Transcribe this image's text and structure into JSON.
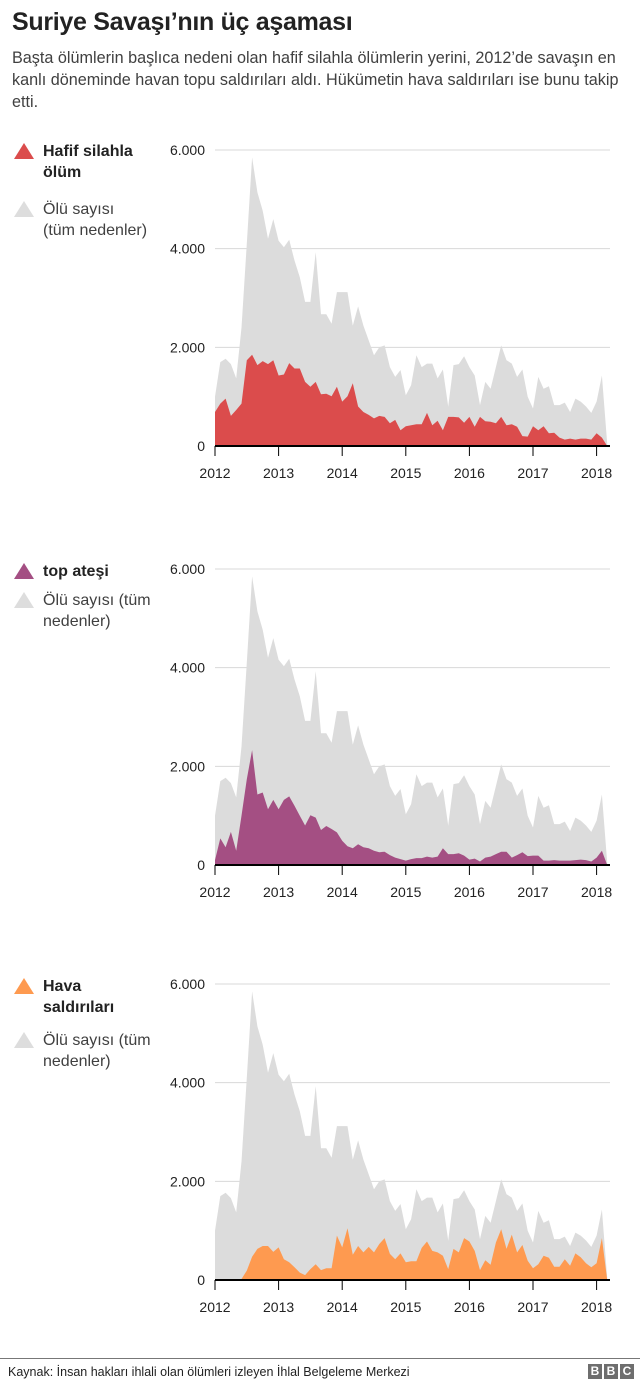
{
  "title": "Suriye Savaşı’nın üç aşaması",
  "subtitle": "Başta ölümlerin başlıca nedeni olan hafif silahla ölümlerin yerini, 2012’de savaşın en kanlı döneminde havan topu saldırıları aldı. Hükümetin hava saldırıları ise bunu takip etti.",
  "source": "Kaynak: İnsan hakları ihlali olan ölümleri izleyen İhlal Belgeleme Merkezi",
  "logo": [
    "B",
    "B",
    "C"
  ],
  "colors": {
    "total": "#dcdcdc",
    "light_weapons": "#db4c4c",
    "shelling": "#a44f83",
    "air": "#fe9a50",
    "grid": "#d8d8d8",
    "axis": "#000000"
  },
  "chart_data": [
    {
      "type": "area",
      "legend": {
        "main": "Hafif silahla ölüm",
        "total": "Ölü sayısı (tüm nedenler)"
      },
      "ylim": [
        0,
        6000
      ],
      "yticks": [
        {
          "v": 0,
          "label": "0"
        },
        {
          "v": 2000,
          "label": "2.000"
        },
        {
          "v": 4000,
          "label": "4.000"
        },
        {
          "v": 6000,
          "label": "6.000"
        }
      ],
      "xticks": [
        "2012",
        "2013",
        "2014",
        "2015",
        "2016",
        "2017",
        "2018"
      ],
      "grid": true,
      "legend_placement": "left",
      "x_start_year": 2012,
      "series": [
        {
          "name": "Ölü sayısı (tüm nedenler)",
          "color_key": "total",
          "values": [
            1000,
            1700,
            1770,
            1660,
            1370,
            2400,
            4100,
            5850,
            5140,
            4770,
            4200,
            4600,
            4160,
            4030,
            4180,
            3760,
            3420,
            2920,
            2920,
            3930,
            2670,
            2670,
            2480,
            3120,
            3120,
            3120,
            2440,
            2830,
            2440,
            2140,
            1840,
            2000,
            2040,
            1600,
            1400,
            1540,
            1030,
            1230,
            1840,
            1600,
            1670,
            1670,
            1370,
            1550,
            800,
            1640,
            1660,
            1820,
            1600,
            1430,
            830,
            1300,
            1160,
            1600,
            2040,
            1740,
            1670,
            1400,
            1550,
            1000,
            760,
            1400,
            1160,
            1210,
            830,
            830,
            880,
            690,
            960,
            900,
            800,
            670,
            900,
            1430,
            50
          ]
        },
        {
          "name": "Hafif silahla ölüm",
          "color_key": "light_weapons",
          "values": [
            690,
            860,
            960,
            610,
            730,
            860,
            1740,
            1850,
            1640,
            1720,
            1660,
            1740,
            1430,
            1450,
            1680,
            1570,
            1570,
            1300,
            1200,
            1300,
            1050,
            1060,
            1010,
            1200,
            900,
            1010,
            1270,
            800,
            690,
            630,
            560,
            610,
            590,
            460,
            530,
            320,
            400,
            420,
            440,
            440,
            670,
            420,
            510,
            320,
            590,
            590,
            580,
            470,
            590,
            390,
            590,
            500,
            490,
            460,
            590,
            420,
            440,
            390,
            200,
            190,
            400,
            320,
            400,
            260,
            270,
            170,
            130,
            150,
            130,
            150,
            150,
            130,
            260,
            170,
            0
          ]
        }
      ]
    },
    {
      "type": "area",
      "legend": {
        "main": "top ateşi",
        "total": "Ölü sayısı (tüm nedenler)"
      },
      "ylim": [
        0,
        6000
      ],
      "yticks": [
        {
          "v": 0,
          "label": "0"
        },
        {
          "v": 2000,
          "label": "2.000"
        },
        {
          "v": 4000,
          "label": "4.000"
        },
        {
          "v": 6000,
          "label": "6.000"
        }
      ],
      "xticks": [
        "2012",
        "2013",
        "2014",
        "2015",
        "2016",
        "2017",
        "2018"
      ],
      "grid": true,
      "legend_placement": "left",
      "x_start_year": 2012,
      "series": [
        {
          "name": "Ölü sayısı (tüm nedenler)",
          "color_key": "total",
          "values": [
            1000,
            1700,
            1770,
            1660,
            1370,
            2400,
            4100,
            5850,
            5140,
            4770,
            4200,
            4600,
            4160,
            4030,
            4180,
            3760,
            3420,
            2920,
            2920,
            3930,
            2670,
            2670,
            2480,
            3120,
            3120,
            3120,
            2440,
            2830,
            2440,
            2140,
            1840,
            2000,
            2040,
            1600,
            1400,
            1540,
            1030,
            1230,
            1840,
            1600,
            1670,
            1670,
            1370,
            1550,
            800,
            1640,
            1660,
            1820,
            1600,
            1430,
            830,
            1300,
            1160,
            1600,
            2040,
            1740,
            1670,
            1400,
            1550,
            1000,
            760,
            1400,
            1160,
            1210,
            830,
            830,
            880,
            690,
            960,
            900,
            800,
            670,
            900,
            1430,
            50
          ]
        },
        {
          "name": "top ateşi",
          "color_key": "shelling",
          "values": [
            100,
            540,
            360,
            670,
            290,
            1000,
            1740,
            2330,
            1430,
            1470,
            1130,
            1320,
            1130,
            1320,
            1390,
            1200,
            1000,
            800,
            1010,
            960,
            710,
            790,
            730,
            660,
            490,
            380,
            340,
            420,
            360,
            340,
            290,
            260,
            270,
            200,
            150,
            120,
            90,
            120,
            140,
            140,
            170,
            150,
            170,
            340,
            220,
            220,
            240,
            190,
            110,
            130,
            70,
            150,
            170,
            220,
            270,
            270,
            150,
            200,
            260,
            180,
            190,
            190,
            90,
            90,
            100,
            90,
            90,
            90,
            100,
            110,
            100,
            70,
            150,
            290,
            0
          ]
        }
      ]
    },
    {
      "type": "area",
      "legend": {
        "main": "Hava saldırıları",
        "total": "Ölü sayısı (tüm nedenler)"
      },
      "ylim": [
        0,
        6000
      ],
      "yticks": [
        {
          "v": 0,
          "label": "0"
        },
        {
          "v": 2000,
          "label": "2.000"
        },
        {
          "v": 4000,
          "label": "4.000"
        },
        {
          "v": 6000,
          "label": "6.000"
        }
      ],
      "xticks": [
        "2012",
        "2013",
        "2014",
        "2015",
        "2016",
        "2017",
        "2018"
      ],
      "grid": true,
      "legend_placement": "left",
      "x_start_year": 2012,
      "series": [
        {
          "name": "Ölü sayısı (tüm nedenler)",
          "color_key": "total",
          "values": [
            1000,
            1700,
            1770,
            1660,
            1370,
            2400,
            4100,
            5850,
            5140,
            4770,
            4200,
            4600,
            4160,
            4030,
            4180,
            3760,
            3420,
            2920,
            2920,
            3930,
            2670,
            2670,
            2480,
            3120,
            3120,
            3120,
            2440,
            2830,
            2440,
            2140,
            1840,
            2000,
            2040,
            1600,
            1400,
            1540,
            1030,
            1230,
            1840,
            1600,
            1670,
            1670,
            1370,
            1550,
            800,
            1640,
            1660,
            1820,
            1600,
            1430,
            830,
            1300,
            1160,
            1600,
            2040,
            1740,
            1670,
            1400,
            1550,
            1000,
            760,
            1400,
            1160,
            1210,
            830,
            830,
            880,
            690,
            960,
            900,
            800,
            670,
            900,
            1430,
            50
          ]
        },
        {
          "name": "Hava saldırıları",
          "color_key": "air",
          "values": [
            0,
            0,
            0,
            0,
            0,
            20,
            190,
            470,
            630,
            690,
            690,
            570,
            660,
            420,
            360,
            260,
            150,
            100,
            220,
            320,
            200,
            240,
            240,
            900,
            660,
            1050,
            510,
            690,
            560,
            670,
            560,
            730,
            850,
            530,
            420,
            540,
            360,
            380,
            380,
            650,
            780,
            590,
            560,
            490,
            220,
            630,
            560,
            850,
            780,
            590,
            200,
            400,
            310,
            760,
            1030,
            630,
            920,
            560,
            710,
            390,
            240,
            320,
            490,
            450,
            270,
            270,
            420,
            290,
            540,
            460,
            340,
            260,
            340,
            850,
            0
          ]
        }
      ]
    }
  ]
}
